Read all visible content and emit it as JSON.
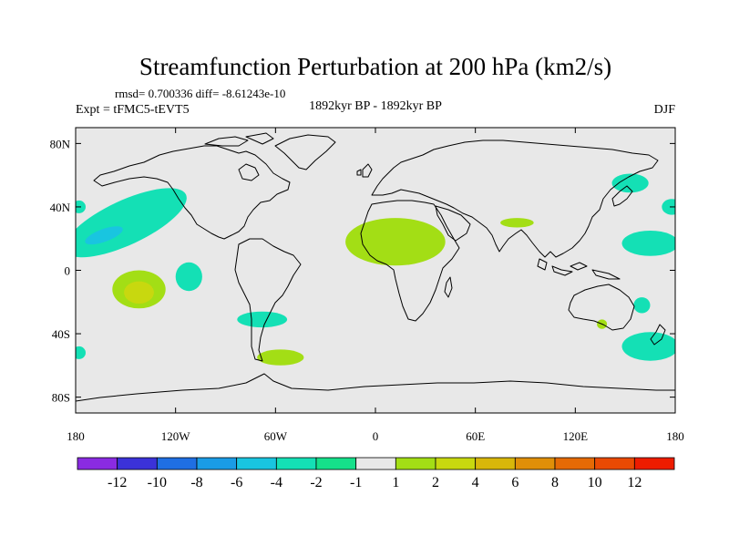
{
  "chart_data": {
    "type": "contour-map",
    "title": "Streamfunction Perturbation at 200 hPa (km2/s)",
    "stats": "rmsd= 0.700336 diff= -8.61243e-10",
    "experiment": "Expt = tFMC5-tEVT5",
    "period": "1892kyr BP - 1892kyr BP",
    "season": "DJF",
    "x_range": [
      -180,
      180
    ],
    "y_range": [
      -90,
      90
    ],
    "x_ticks": [
      {
        "value": -180,
        "label": "180"
      },
      {
        "value": -120,
        "label": "120W"
      },
      {
        "value": -60,
        "label": "60W"
      },
      {
        "value": 0,
        "label": "0"
      },
      {
        "value": 60,
        "label": "60E"
      },
      {
        "value": 120,
        "label": "120E"
      },
      {
        "value": 180,
        "label": "180"
      }
    ],
    "y_ticks": [
      {
        "value": 80,
        "label": "80N"
      },
      {
        "value": 40,
        "label": "40N"
      },
      {
        "value": 0,
        "label": "0"
      },
      {
        "value": -40,
        "label": "40S"
      },
      {
        "value": -80,
        "label": "80S"
      }
    ],
    "colorbar": {
      "colors": [
        "#8a2be2",
        "#3b32d9",
        "#1f6fe3",
        "#1a9ce6",
        "#19c5e0",
        "#14e0b5",
        "#15e08a",
        "#e8e8e8",
        "#a3de15",
        "#c8d80f",
        "#d8b70a",
        "#e08f08",
        "#e56a05",
        "#ea4a03",
        "#ee1c00"
      ],
      "labels": [
        "-12",
        "-10",
        "-8",
        "-6",
        "-4",
        "-2",
        "-1",
        "1",
        "2",
        "4",
        "6",
        "8",
        "10",
        "12"
      ]
    },
    "anomalies": [
      {
        "name": "north-pacific-negative",
        "lon": -150,
        "lat": 30,
        "rlon": 40,
        "rlat": 14,
        "rot": -25,
        "level": -2
      },
      {
        "name": "north-pacific-core",
        "lon": -163,
        "lat": 22,
        "rlon": 12,
        "rlat": 4,
        "rot": -20,
        "level": -4
      },
      {
        "name": "dateline-north-negative",
        "lon": 178,
        "lat": 40,
        "rlon": 6,
        "rlat": 5,
        "rot": 0,
        "level": -2
      },
      {
        "name": "dateline-east-negative",
        "lon": -178,
        "lat": 40,
        "rlon": 4,
        "rlat": 4,
        "rot": 0,
        "level": -2
      },
      {
        "name": "south-pacific-positive",
        "lon": -142,
        "lat": -12,
        "rlon": 16,
        "rlat": 12,
        "rot": 0,
        "level": 2
      },
      {
        "name": "south-pacific-core",
        "lon": -142,
        "lat": -14,
        "rlon": 9,
        "rlat": 7,
        "rot": 0,
        "level": 4
      },
      {
        "name": "tropical-pacific-negative",
        "lon": -112,
        "lat": -4,
        "rlon": 8,
        "rlat": 9,
        "rot": 0,
        "level": -2
      },
      {
        "name": "south-america-negative",
        "lon": -68,
        "lat": -31,
        "rlon": 15,
        "rlat": 5,
        "rot": 0,
        "level": -2
      },
      {
        "name": "tropical-atlantic-africa-positive",
        "lon": 12,
        "lat": 18,
        "rlon": 30,
        "rlat": 15,
        "rot": 0,
        "level": 2
      },
      {
        "name": "south-atlantic-positive",
        "lon": -57,
        "lat": -55,
        "rlon": 14,
        "rlat": 5,
        "rot": 0,
        "level": 2
      },
      {
        "name": "arabian-sea-positive",
        "lon": 85,
        "lat": 30,
        "rlon": 10,
        "rlat": 3,
        "rot": 0,
        "level": 2
      },
      {
        "name": "japan-negative",
        "lon": 153,
        "lat": 55,
        "rlon": 11,
        "rlat": 6,
        "rot": 0,
        "level": -2
      },
      {
        "name": "west-pacific-negative",
        "lon": 165,
        "lat": 17,
        "rlon": 17,
        "rlat": 8,
        "rot": 0,
        "level": -2
      },
      {
        "name": "australia-east-negative",
        "lon": 160,
        "lat": -22,
        "rlon": 5,
        "rlat": 5,
        "rot": 0,
        "level": -2
      },
      {
        "name": "australia-positive",
        "lon": 136,
        "lat": -34,
        "rlon": 3,
        "rlat": 3,
        "rot": 0,
        "level": 2
      },
      {
        "name": "southwest-pacific-negative",
        "lon": 165,
        "lat": -48,
        "rlon": 17,
        "rlat": 9,
        "rot": 0,
        "level": -2
      },
      {
        "name": "dateline-south-negative",
        "lon": -178,
        "lat": -52,
        "rlon": 4,
        "rlat": 4,
        "rot": 0,
        "level": -2
      }
    ]
  }
}
